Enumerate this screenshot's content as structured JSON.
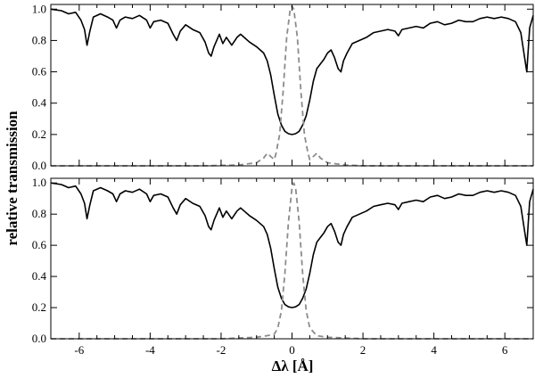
{
  "chart_data": {
    "type": "line",
    "xlabel": "Δλ [Å]",
    "ylabel": "relative transmission",
    "xlim": [
      -6.8,
      6.8
    ],
    "xticks": [
      -6,
      -4,
      -2,
      0,
      2,
      4,
      6
    ],
    "yticks": [
      0.0,
      0.2,
      0.4,
      0.6,
      0.8,
      1.0
    ],
    "yticklabels": [
      "0.0",
      "0.2",
      "0.4",
      "0.6",
      "0.8",
      "1.0"
    ],
    "grid": false,
    "legend": "none",
    "colors": {
      "solid": "#000000",
      "dashed": "#8c8c8c"
    },
    "panels": [
      {
        "position": "top",
        "ylim": [
          0.0,
          1.03
        ],
        "series": [
          {
            "style": "solid",
            "x": [
              -6.8,
              -6.5,
              -6.3,
              -6.1,
              -5.95,
              -5.85,
              -5.78,
              -5.7,
              -5.6,
              -5.4,
              -5.2,
              -5.05,
              -4.95,
              -4.85,
              -4.7,
              -4.5,
              -4.3,
              -4.1,
              -4.0,
              -3.9,
              -3.7,
              -3.5,
              -3.35,
              -3.25,
              -3.15,
              -3.0,
              -2.8,
              -2.6,
              -2.45,
              -2.35,
              -2.28,
              -2.2,
              -2.05,
              -1.95,
              -1.85,
              -1.7,
              -1.55,
              -1.45,
              -1.35,
              -1.2,
              -1.0,
              -0.8,
              -0.7,
              -0.6,
              -0.5,
              -0.4,
              -0.3,
              -0.2,
              -0.1,
              0.0,
              0.1,
              0.2,
              0.3,
              0.4,
              0.5,
              0.6,
              0.7,
              0.8,
              0.9,
              1.0,
              1.1,
              1.2,
              1.3,
              1.38,
              1.45,
              1.55,
              1.7,
              1.9,
              2.1,
              2.3,
              2.5,
              2.7,
              2.9,
              3.0,
              3.1,
              3.3,
              3.5,
              3.7,
              3.9,
              4.1,
              4.3,
              4.5,
              4.7,
              4.9,
              5.1,
              5.3,
              5.5,
              5.7,
              5.9,
              6.1,
              6.3,
              6.45,
              6.55,
              6.62,
              6.7,
              6.8
            ],
            "y": [
              1.0,
              0.99,
              0.97,
              0.98,
              0.93,
              0.87,
              0.77,
              0.86,
              0.95,
              0.97,
              0.95,
              0.93,
              0.88,
              0.93,
              0.95,
              0.94,
              0.96,
              0.93,
              0.88,
              0.92,
              0.93,
              0.91,
              0.84,
              0.8,
              0.86,
              0.9,
              0.87,
              0.85,
              0.79,
              0.72,
              0.7,
              0.76,
              0.84,
              0.78,
              0.82,
              0.77,
              0.82,
              0.84,
              0.82,
              0.79,
              0.76,
              0.72,
              0.67,
              0.58,
              0.45,
              0.33,
              0.26,
              0.22,
              0.205,
              0.2,
              0.205,
              0.22,
              0.26,
              0.32,
              0.42,
              0.54,
              0.62,
              0.65,
              0.68,
              0.72,
              0.74,
              0.69,
              0.62,
              0.6,
              0.67,
              0.72,
              0.78,
              0.8,
              0.82,
              0.85,
              0.86,
              0.87,
              0.86,
              0.83,
              0.87,
              0.88,
              0.89,
              0.88,
              0.91,
              0.92,
              0.9,
              0.91,
              0.93,
              0.92,
              0.92,
              0.94,
              0.95,
              0.94,
              0.95,
              0.94,
              0.92,
              0.85,
              0.7,
              0.6,
              0.88,
              0.96
            ]
          },
          {
            "style": "dashed",
            "x": [
              -6.8,
              -2.5,
              -1.5,
              -1.0,
              -0.8,
              -0.7,
              -0.6,
              -0.5,
              -0.45,
              -0.35,
              -0.25,
              -0.15,
              -0.05,
              0.0,
              0.05,
              0.15,
              0.25,
              0.35,
              0.45,
              0.5,
              0.6,
              0.7,
              0.8,
              1.0,
              1.5,
              2.0,
              6.8
            ],
            "y": [
              0.0,
              0.0,
              0.005,
              0.02,
              0.05,
              0.08,
              0.06,
              0.04,
              0.08,
              0.2,
              0.48,
              0.82,
              1.0,
              1.02,
              1.0,
              0.82,
              0.48,
              0.2,
              0.08,
              0.04,
              0.06,
              0.08,
              0.05,
              0.02,
              0.005,
              0.0,
              0.0
            ]
          }
        ]
      },
      {
        "position": "bottom",
        "ylim": [
          0.0,
          1.03
        ],
        "series": [
          {
            "style": "solid",
            "x": [
              -6.8,
              -6.5,
              -6.3,
              -6.1,
              -5.95,
              -5.85,
              -5.78,
              -5.7,
              -5.6,
              -5.4,
              -5.2,
              -5.05,
              -4.95,
              -4.85,
              -4.7,
              -4.5,
              -4.3,
              -4.1,
              -4.0,
              -3.9,
              -3.7,
              -3.5,
              -3.35,
              -3.25,
              -3.15,
              -3.0,
              -2.8,
              -2.6,
              -2.45,
              -2.35,
              -2.28,
              -2.2,
              -2.05,
              -1.95,
              -1.85,
              -1.7,
              -1.55,
              -1.45,
              -1.35,
              -1.2,
              -1.0,
              -0.8,
              -0.7,
              -0.6,
              -0.5,
              -0.4,
              -0.3,
              -0.2,
              -0.1,
              0.0,
              0.1,
              0.2,
              0.3,
              0.4,
              0.5,
              0.6,
              0.7,
              0.8,
              0.9,
              1.0,
              1.1,
              1.2,
              1.3,
              1.38,
              1.45,
              1.55,
              1.7,
              1.9,
              2.1,
              2.3,
              2.5,
              2.7,
              2.9,
              3.0,
              3.1,
              3.3,
              3.5,
              3.7,
              3.9,
              4.1,
              4.3,
              4.5,
              4.7,
              4.9,
              5.1,
              5.3,
              5.5,
              5.7,
              5.9,
              6.1,
              6.3,
              6.45,
              6.55,
              6.62,
              6.7,
              6.8
            ],
            "y": [
              1.0,
              0.99,
              0.97,
              0.98,
              0.93,
              0.87,
              0.77,
              0.86,
              0.95,
              0.97,
              0.95,
              0.93,
              0.88,
              0.93,
              0.95,
              0.94,
              0.96,
              0.93,
              0.88,
              0.92,
              0.93,
              0.91,
              0.84,
              0.8,
              0.86,
              0.9,
              0.87,
              0.85,
              0.79,
              0.72,
              0.7,
              0.76,
              0.84,
              0.78,
              0.82,
              0.77,
              0.82,
              0.84,
              0.82,
              0.79,
              0.76,
              0.72,
              0.67,
              0.58,
              0.45,
              0.33,
              0.26,
              0.22,
              0.205,
              0.2,
              0.205,
              0.22,
              0.26,
              0.32,
              0.42,
              0.54,
              0.62,
              0.65,
              0.68,
              0.72,
              0.74,
              0.69,
              0.62,
              0.6,
              0.67,
              0.72,
              0.78,
              0.8,
              0.82,
              0.85,
              0.86,
              0.87,
              0.86,
              0.83,
              0.87,
              0.88,
              0.89,
              0.88,
              0.91,
              0.92,
              0.9,
              0.91,
              0.93,
              0.92,
              0.92,
              0.94,
              0.95,
              0.94,
              0.95,
              0.94,
              0.92,
              0.85,
              0.7,
              0.6,
              0.88,
              0.96
            ]
          },
          {
            "style": "dashed",
            "x": [
              -6.8,
              -2.0,
              -1.5,
              -1.0,
              -0.7,
              -0.5,
              -0.4,
              -0.3,
              -0.2,
              -0.1,
              0.0,
              0.05,
              0.1,
              0.2,
              0.3,
              0.4,
              0.5,
              0.7,
              1.0,
              1.5,
              2.0,
              6.8
            ],
            "y": [
              0.0,
              0.0,
              0.005,
              0.01,
              0.02,
              0.03,
              0.07,
              0.18,
              0.42,
              0.75,
              0.97,
              1.0,
              0.97,
              0.75,
              0.42,
              0.18,
              0.07,
              0.02,
              0.01,
              0.005,
              0.0,
              0.0
            ]
          }
        ]
      }
    ]
  }
}
